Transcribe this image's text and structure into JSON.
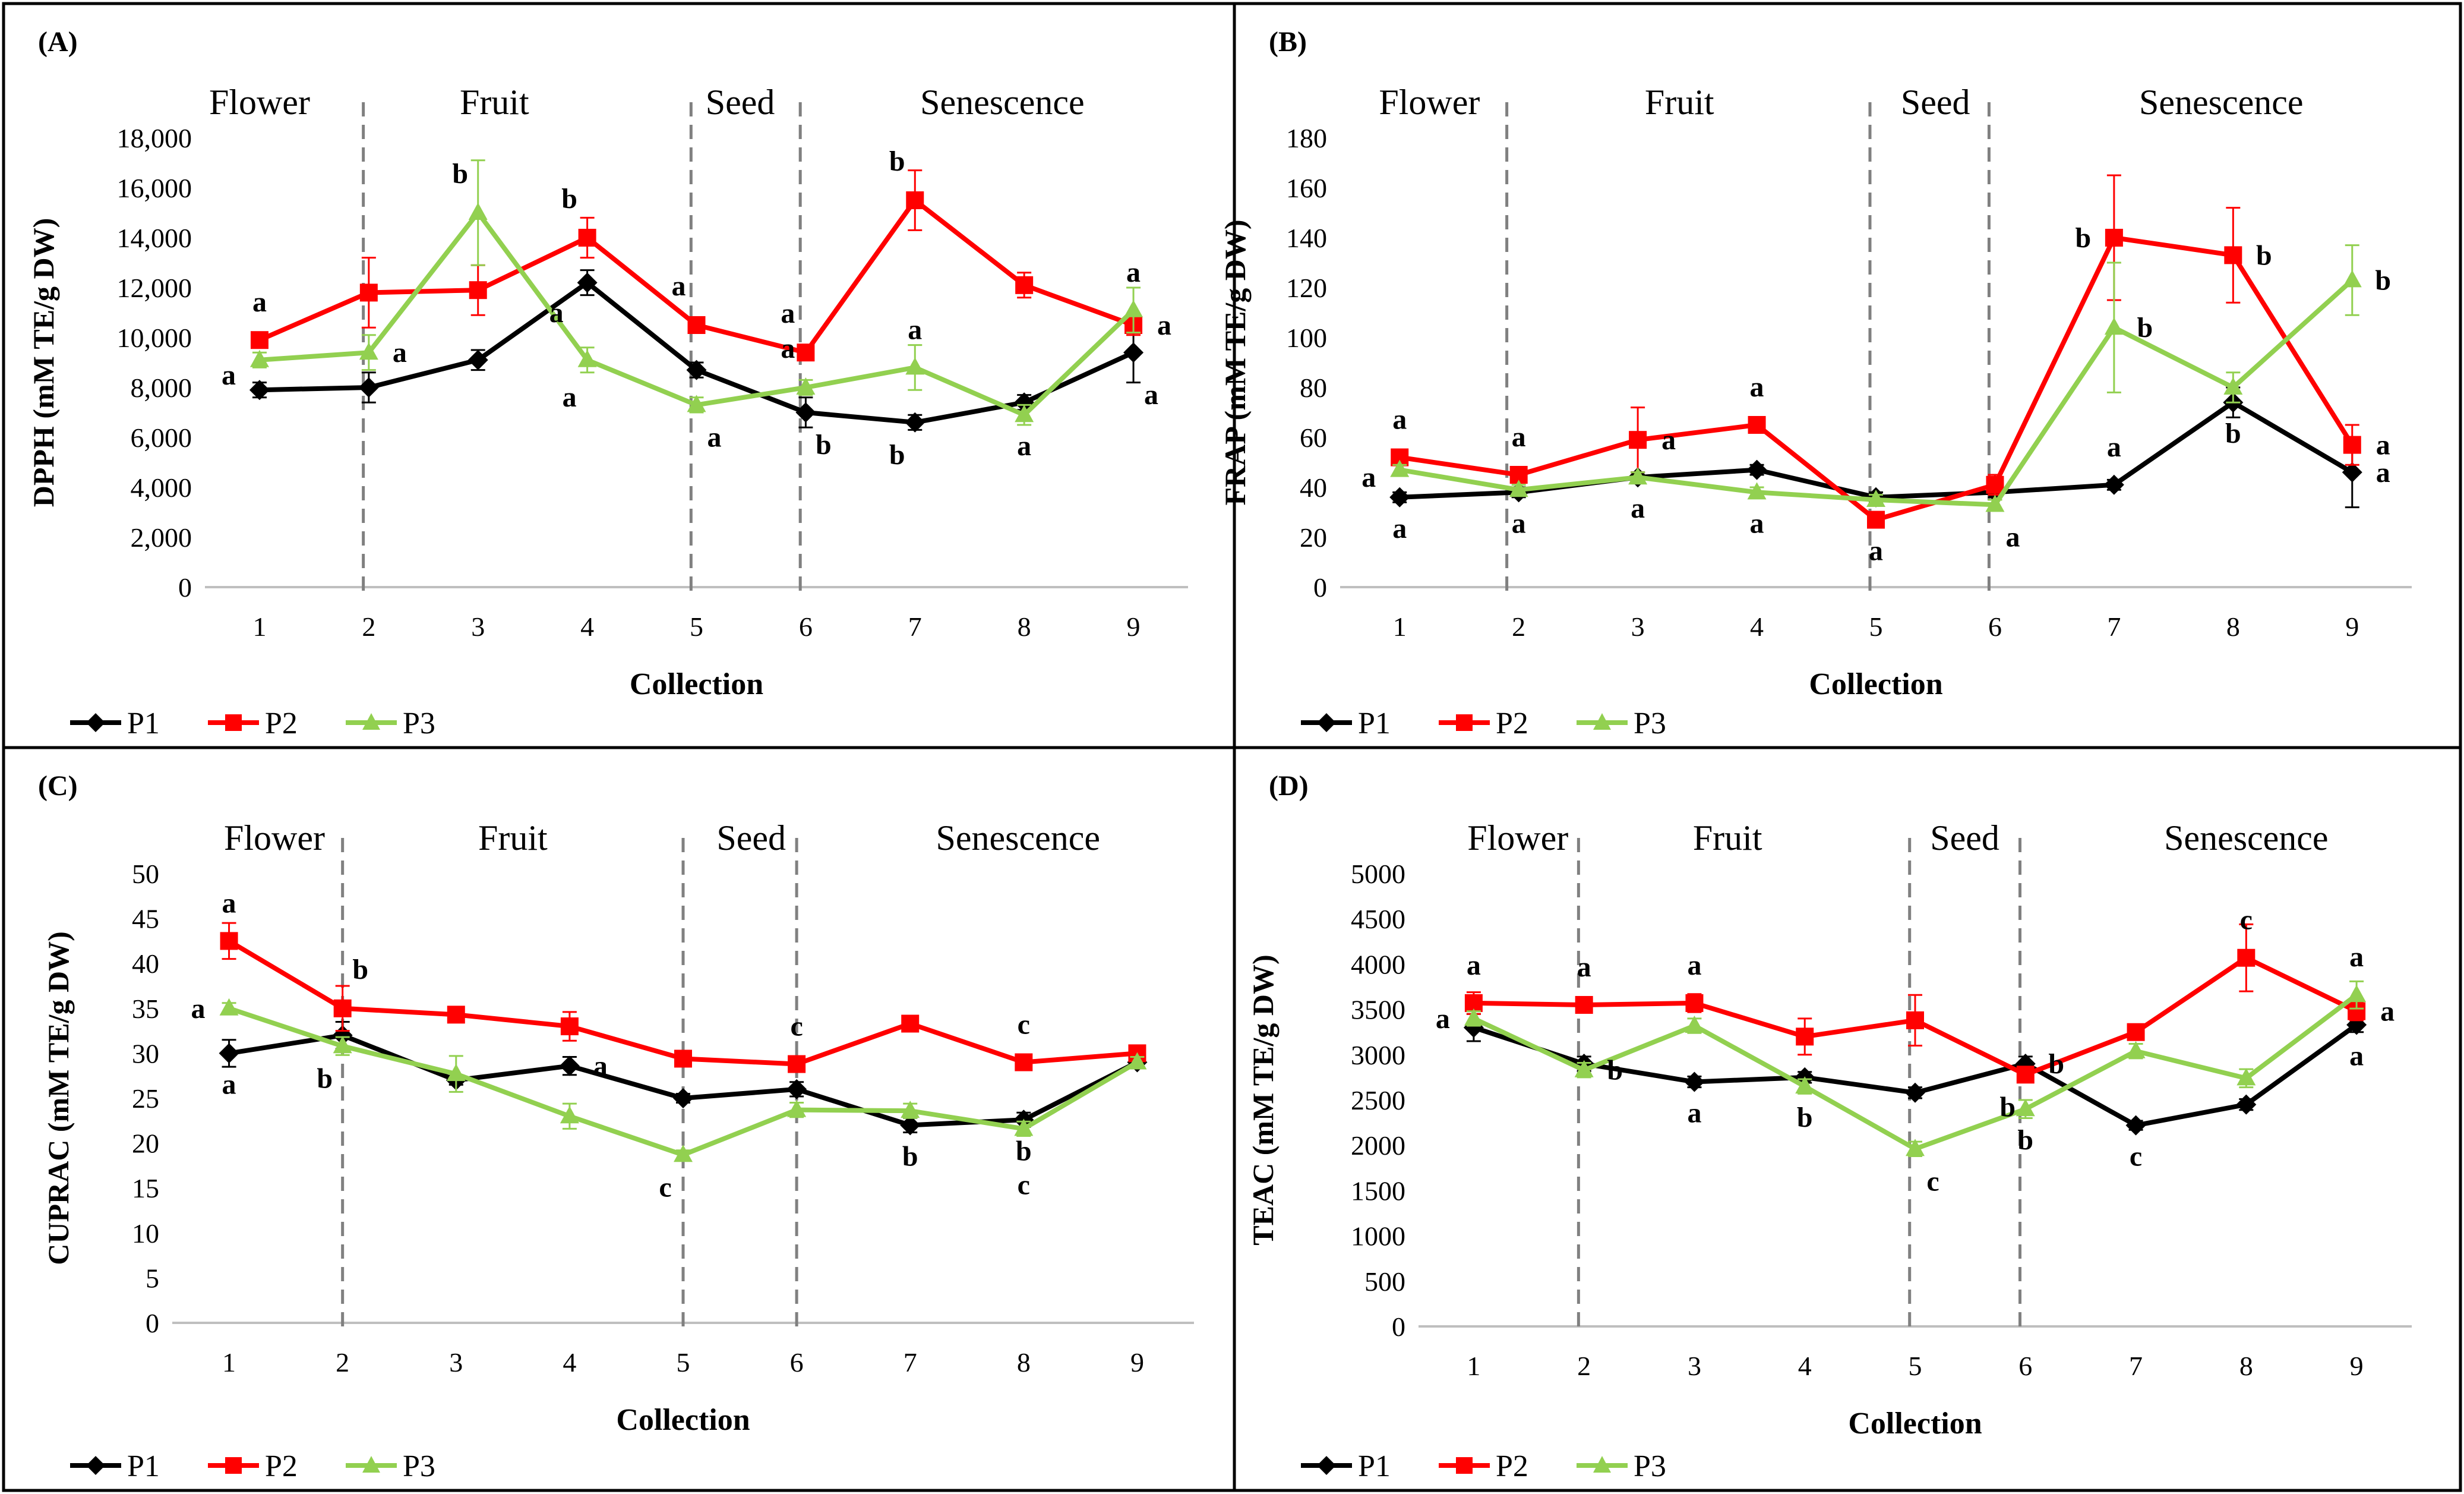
{
  "colors": {
    "P1": "#000000",
    "P2": "#ff0000",
    "P3": "#92d050",
    "divider": "#808080",
    "axis": "#bfbfbf",
    "border": "#000000"
  },
  "chart_data": [
    {
      "type": "line",
      "panel_label": "(A)",
      "ylabel": "DPPH (mM TE/g DW)",
      "xlabel": "Collection",
      "ylim": [
        0,
        18000
      ],
      "ytick_step": 2000,
      "ytick_labels": [
        "0",
        "2,000",
        "4,000",
        "6,000",
        "8,000",
        "10,000",
        "12,000",
        "14,000",
        "16,000",
        "18,000"
      ],
      "x": [
        1,
        2,
        3,
        4,
        5,
        6,
        7,
        8,
        9
      ],
      "xtick_labels": [
        "1",
        "2",
        "3",
        "4",
        "5",
        "6",
        "7",
        "8",
        "9"
      ],
      "stages": [
        "Flower",
        "Fruit",
        "Seed",
        "Senescence"
      ],
      "dividers": [
        1.95,
        4.95,
        5.95
      ],
      "series": [
        {
          "name": "P1",
          "values": [
            7900,
            8000,
            9100,
            12200,
            8700,
            7000,
            6600,
            7400,
            9400
          ],
          "errors": [
            300,
            600,
            400,
            500,
            300,
            600,
            300,
            300,
            1200
          ]
        },
        {
          "name": "P2",
          "values": [
            9900,
            11800,
            11900,
            14000,
            10500,
            9400,
            15500,
            12100,
            10500
          ],
          "errors": [
            300,
            1400,
            1000,
            800,
            300,
            300,
            1200,
            500,
            400
          ]
        },
        {
          "name": "P3",
          "values": [
            9100,
            9400,
            15000,
            9100,
            7300,
            8000,
            8800,
            6900,
            11100
          ],
          "errors": [
            300,
            700,
            2100,
            500,
            300,
            300,
            900,
            400,
            900
          ]
        }
      ],
      "letters": [
        {
          "text": "a",
          "x": 1,
          "y": 9900,
          "pos": "above"
        },
        {
          "text": "a",
          "x": 1,
          "y": 8500,
          "pos": "left"
        },
        {
          "text": "a",
          "x": 2,
          "y": 9400,
          "pos": "right"
        },
        {
          "text": "b",
          "x": 3,
          "y": 15000,
          "pos": "aboveleft"
        },
        {
          "text": "b",
          "x": 4,
          "y": 14000,
          "pos": "aboveleft"
        },
        {
          "text": "a",
          "x": 4,
          "y": 11000,
          "pos": "left"
        },
        {
          "text": "a",
          "x": 4,
          "y": 8900,
          "pos": "belowleft"
        },
        {
          "text": "a",
          "x": 5,
          "y": 10500,
          "pos": "aboveleft"
        },
        {
          "text": "a",
          "x": 5,
          "y": 7300,
          "pos": "belowright"
        },
        {
          "text": "a",
          "x": 6,
          "y": 9400,
          "pos": "aboveleft"
        },
        {
          "text": "a",
          "x": 6,
          "y": 8000,
          "pos": "aboveleft"
        },
        {
          "text": "b",
          "x": 6,
          "y": 7000,
          "pos": "belowright"
        },
        {
          "text": "b",
          "x": 7,
          "y": 15500,
          "pos": "aboveleft"
        },
        {
          "text": "a",
          "x": 7,
          "y": 8800,
          "pos": "above"
        },
        {
          "text": "b",
          "x": 7,
          "y": 6600,
          "pos": "belowleft"
        },
        {
          "text": "a",
          "x": 8,
          "y": 6900,
          "pos": "below"
        },
        {
          "text": "a",
          "x": 9,
          "y": 11100,
          "pos": "above"
        },
        {
          "text": "a",
          "x": 9,
          "y": 10500,
          "pos": "right"
        },
        {
          "text": "a",
          "x": 9,
          "y": 9000,
          "pos": "belowright"
        }
      ]
    },
    {
      "type": "line",
      "panel_label": "(B)",
      "ylabel": "FRAP (mM TE/g DW)",
      "xlabel": "Collection",
      "ylim": [
        0,
        180
      ],
      "ytick_step": 20,
      "ytick_labels": [
        "0",
        "20",
        "40",
        "60",
        "80",
        "100",
        "120",
        "140",
        "160",
        "180"
      ],
      "x": [
        1,
        2,
        3,
        4,
        5,
        6,
        7,
        8,
        9
      ],
      "xtick_labels": [
        "1",
        "2",
        "3",
        "4",
        "5",
        "6",
        "7",
        "8",
        "9"
      ],
      "stages": [
        "Flower",
        "Fruit",
        "Seed",
        "Senescence"
      ],
      "dividers": [
        1.9,
        4.95,
        5.95
      ],
      "series": [
        {
          "name": "P1",
          "values": [
            36,
            38,
            44,
            47,
            36,
            38,
            41,
            74,
            46
          ],
          "errors": [
            2,
            2,
            2,
            2,
            2,
            2,
            2,
            6,
            14
          ]
        },
        {
          "name": "P2",
          "values": [
            52,
            45,
            59,
            65,
            27,
            41,
            140,
            133,
            57
          ],
          "errors": [
            2,
            2,
            13,
            2,
            2,
            4,
            25,
            19,
            8
          ]
        },
        {
          "name": "P3",
          "values": [
            47,
            39,
            44,
            38,
            35,
            33,
            104,
            80,
            123
          ],
          "errors": [
            2,
            2,
            2,
            2,
            2,
            2,
            26,
            6,
            14
          ]
        }
      ],
      "letters": [
        {
          "text": "a",
          "x": 1,
          "y": 52,
          "pos": "above"
        },
        {
          "text": "a",
          "x": 1,
          "y": 44,
          "pos": "left"
        },
        {
          "text": "a",
          "x": 1,
          "y": 36,
          "pos": "below"
        },
        {
          "text": "a",
          "x": 2,
          "y": 45,
          "pos": "above"
        },
        {
          "text": "a",
          "x": 2,
          "y": 38,
          "pos": "below"
        },
        {
          "text": "a",
          "x": 3,
          "y": 59,
          "pos": "right"
        },
        {
          "text": "a",
          "x": 3,
          "y": 44,
          "pos": "below"
        },
        {
          "text": "a",
          "x": 4,
          "y": 65,
          "pos": "above"
        },
        {
          "text": "a",
          "x": 4,
          "y": 38,
          "pos": "below"
        },
        {
          "text": "a",
          "x": 5,
          "y": 27,
          "pos": "below"
        },
        {
          "text": "a",
          "x": 6,
          "y": 33,
          "pos": "belowright"
        },
        {
          "text": "b",
          "x": 7,
          "y": 140,
          "pos": "left"
        },
        {
          "text": "b",
          "x": 7,
          "y": 104,
          "pos": "right"
        },
        {
          "text": "a",
          "x": 7,
          "y": 41,
          "pos": "above"
        },
        {
          "text": "b",
          "x": 8,
          "y": 133,
          "pos": "right"
        },
        {
          "text": "b",
          "x": 8,
          "y": 74,
          "pos": "below"
        },
        {
          "text": "b",
          "x": 9,
          "y": 123,
          "pos": "right"
        },
        {
          "text": "a",
          "x": 9,
          "y": 57,
          "pos": "right"
        },
        {
          "text": "a",
          "x": 9,
          "y": 46,
          "pos": "right"
        }
      ]
    },
    {
      "type": "line",
      "panel_label": "(C)",
      "ylabel": "CUPRAC (mM TE/g DW)",
      "xlabel": "Collection",
      "ylim": [
        0,
        50
      ],
      "ytick_step": 5,
      "ytick_labels": [
        "0",
        "5",
        "10",
        "15",
        "20",
        "25",
        "30",
        "35",
        "40",
        "45",
        "50"
      ],
      "x": [
        1,
        2,
        3,
        4,
        5,
        6,
        7,
        8,
        9
      ],
      "xtick_labels": [
        "1",
        "2",
        "3",
        "4",
        "5",
        "6",
        "7",
        "8",
        "9"
      ],
      "stages": [
        "Flower",
        "Fruit",
        "Seed",
        "Senescence"
      ],
      "dividers": [
        2.0,
        5.0,
        6.0
      ],
      "series": [
        {
          "name": "P1",
          "values": [
            30,
            32,
            27,
            28.6,
            25,
            26,
            22,
            22.6,
            29
          ],
          "errors": [
            1.5,
            1.5,
            0.5,
            1.0,
            0.5,
            0.8,
            0.8,
            0.8,
            0.6
          ]
        },
        {
          "name": "P2",
          "values": [
            42.5,
            35,
            34.3,
            33,
            29.4,
            28.8,
            33.3,
            29,
            30
          ],
          "errors": [
            2.0,
            2.5,
            0.5,
            1.6,
            0.5,
            0.5,
            0.5,
            0.5,
            0.5
          ]
        },
        {
          "name": "P3",
          "values": [
            35,
            30.8,
            27.7,
            23,
            18.7,
            23.7,
            23.6,
            21.6,
            29
          ],
          "errors": [
            0.6,
            1.0,
            2.0,
            1.4,
            0.5,
            0.8,
            0.8,
            0.8,
            0.6
          ]
        }
      ],
      "letters": [
        {
          "text": "a",
          "x": 1,
          "y": 42.5,
          "pos": "above"
        },
        {
          "text": "a",
          "x": 1,
          "y": 35,
          "pos": "left"
        },
        {
          "text": "a",
          "x": 1,
          "y": 30,
          "pos": "below"
        },
        {
          "text": "b",
          "x": 2,
          "y": 35,
          "pos": "aboveright"
        },
        {
          "text": "b",
          "x": 2,
          "y": 30.8,
          "pos": "belowleft"
        },
        {
          "text": "a",
          "x": 4,
          "y": 28.6,
          "pos": "right"
        },
        {
          "text": "c",
          "x": 5,
          "y": 18.7,
          "pos": "belowleft"
        },
        {
          "text": "c",
          "x": 6,
          "y": 28.8,
          "pos": "above"
        },
        {
          "text": "b",
          "x": 7,
          "y": 22,
          "pos": "below"
        },
        {
          "text": "c",
          "x": 8,
          "y": 29,
          "pos": "above"
        },
        {
          "text": "b",
          "x": 8,
          "y": 22.6,
          "pos": "below"
        },
        {
          "text": "c",
          "x": 8,
          "y": 21.6,
          "pos": "belowfar"
        }
      ]
    },
    {
      "type": "line",
      "panel_label": "(D)",
      "ylabel": "TEAC (mM TE/g DW)",
      "xlabel": "Collection",
      "ylim": [
        0,
        5000
      ],
      "ytick_step": 500,
      "ytick_labels": [
        "0",
        "500",
        "1000",
        "1500",
        "2000",
        "2500",
        "3000",
        "3500",
        "4000",
        "4500",
        "5000"
      ],
      "x": [
        1,
        2,
        3,
        4,
        5,
        6,
        7,
        8,
        9
      ],
      "xtick_labels": [
        "1",
        "2",
        "3",
        "4",
        "5",
        "6",
        "7",
        "8",
        "9"
      ],
      "stages": [
        "Flower",
        "Fruit",
        "Seed",
        "Senescence"
      ],
      "dividers": [
        1.95,
        4.95,
        5.95
      ],
      "series": [
        {
          "name": "P1",
          "values": [
            3300,
            2900,
            2700,
            2750,
            2580,
            2900,
            2220,
            2450,
            3330
          ],
          "errors": [
            150,
            80,
            60,
            60,
            60,
            80,
            50,
            60,
            80
          ]
        },
        {
          "name": "P2",
          "values": [
            3570,
            3550,
            3570,
            3200,
            3380,
            2780,
            3250,
            4070,
            3480
          ],
          "errors": [
            120,
            60,
            100,
            200,
            280,
            80,
            60,
            370,
            100
          ]
        },
        {
          "name": "P3",
          "values": [
            3400,
            2830,
            3320,
            2650,
            1960,
            2400,
            3040,
            2740,
            3660
          ],
          "errors": [
            80,
            80,
            80,
            80,
            80,
            100,
            80,
            100,
            150
          ]
        }
      ],
      "letters": [
        {
          "text": "a",
          "x": 1,
          "y": 3570,
          "pos": "above"
        },
        {
          "text": "a",
          "x": 1,
          "y": 3400,
          "pos": "left"
        },
        {
          "text": "a",
          "x": 2,
          "y": 3550,
          "pos": "above"
        },
        {
          "text": "b",
          "x": 2,
          "y": 2830,
          "pos": "right"
        },
        {
          "text": "a",
          "x": 3,
          "y": 3570,
          "pos": "above"
        },
        {
          "text": "a",
          "x": 3,
          "y": 2700,
          "pos": "below"
        },
        {
          "text": "b",
          "x": 4,
          "y": 2650,
          "pos": "below"
        },
        {
          "text": "c",
          "x": 5,
          "y": 1960,
          "pos": "belowright"
        },
        {
          "text": "b",
          "x": 6,
          "y": 2900,
          "pos": "right"
        },
        {
          "text": "b",
          "x": 6,
          "y": 2780,
          "pos": "belowleft"
        },
        {
          "text": "b",
          "x": 6,
          "y": 2400,
          "pos": "below"
        },
        {
          "text": "c",
          "x": 7,
          "y": 2220,
          "pos": "below"
        },
        {
          "text": "c",
          "x": 8,
          "y": 4070,
          "pos": "above"
        },
        {
          "text": "a",
          "x": 9,
          "y": 3660,
          "pos": "above"
        },
        {
          "text": "a",
          "x": 9,
          "y": 3480,
          "pos": "right"
        },
        {
          "text": "a",
          "x": 9,
          "y": 3330,
          "pos": "below"
        }
      ]
    }
  ]
}
